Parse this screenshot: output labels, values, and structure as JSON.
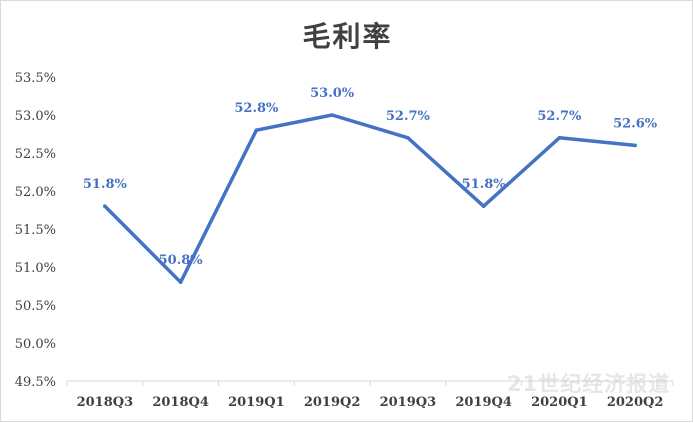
{
  "chart_data": {
    "type": "line",
    "title": "毛利率",
    "categories": [
      "2018Q3",
      "2018Q4",
      "2019Q1",
      "2019Q2",
      "2019Q3",
      "2019Q4",
      "2020Q1",
      "2020Q2"
    ],
    "series": [
      {
        "values": [
          51.8,
          50.8,
          52.8,
          53.0,
          52.7,
          51.8,
          52.7,
          52.6
        ],
        "labels": [
          "51.8%",
          "50.8%",
          "52.8%",
          "53.0%",
          "52.7%",
          "51.8%",
          "52.7%",
          "52.6%"
        ],
        "color": "#4472c4"
      }
    ],
    "ylim": [
      49.5,
      53.5
    ],
    "yticks": [
      49.5,
      50.0,
      50.5,
      51.0,
      51.5,
      52.0,
      52.5,
      53.0,
      53.5
    ],
    "ytick_labels": [
      "49.5%",
      "50.0%",
      "50.5%",
      "51.0%",
      "51.5%",
      "52.0%",
      "52.5%",
      "53.0%",
      "53.5%"
    ],
    "xlabel": "",
    "ylabel": "",
    "grid": false,
    "legend": "none"
  },
  "watermark": "21世纪经济报道"
}
